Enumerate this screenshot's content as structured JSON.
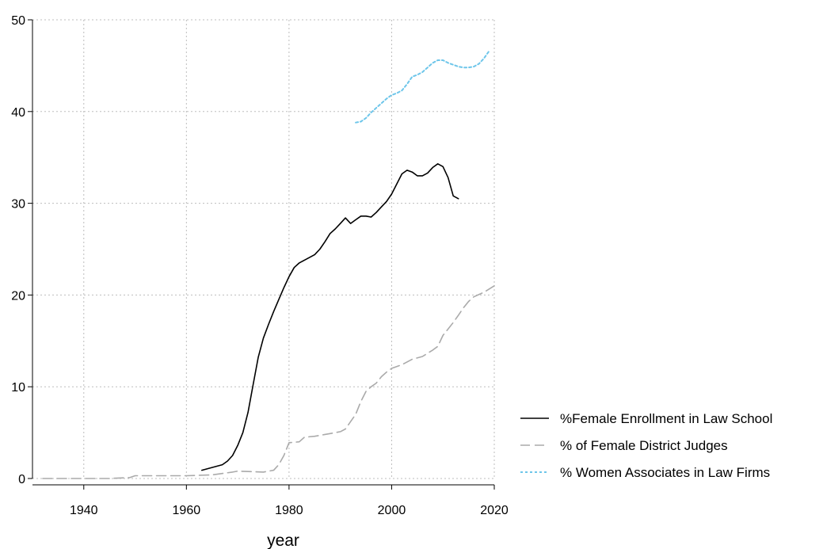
{
  "chart_data": {
    "type": "line",
    "title": "",
    "xlabel": "year",
    "ylabel": "",
    "xlim": [
      1930,
      2020
    ],
    "ylim": [
      0,
      50
    ],
    "xticks": [
      1940,
      1960,
      1980,
      2000,
      2020
    ],
    "yticks": [
      0,
      10,
      20,
      30,
      40,
      50
    ],
    "grid": true,
    "legend_position": "bottom-right outside",
    "series": [
      {
        "name": "%Female Enrollment in Law School",
        "color": "#000000",
        "style": "solid",
        "x": [
          1963,
          1965,
          1967,
          1968,
          1969,
          1970,
          1971,
          1972,
          1973,
          1974,
          1975,
          1976,
          1977,
          1978,
          1979,
          1980,
          1981,
          1982,
          1983,
          1984,
          1985,
          1986,
          1987,
          1988,
          1989,
          1990,
          1991,
          1992,
          1993,
          1994,
          1995,
          1996,
          1997,
          1998,
          1999,
          2000,
          2001,
          2002,
          2003,
          2004,
          2005,
          2006,
          2007,
          2008,
          2009,
          2010,
          2011,
          2012,
          2013
        ],
        "y": [
          0.9,
          1.2,
          1.5,
          1.9,
          2.5,
          3.6,
          5.0,
          7.2,
          10.2,
          13.2,
          15.3,
          16.8,
          18.2,
          19.5,
          20.8,
          22.0,
          23.0,
          23.5,
          23.8,
          24.1,
          24.4,
          25.0,
          25.8,
          26.7,
          27.2,
          27.8,
          28.4,
          27.8,
          28.2,
          28.6,
          28.6,
          28.5,
          29.0,
          29.6,
          30.2,
          31.0,
          32.1,
          33.2,
          33.6,
          33.4,
          33.0,
          33.0,
          33.3,
          33.9,
          34.3,
          34.0,
          32.8,
          30.8,
          30.5
        ]
      },
      {
        "name": "% of Female District Judges",
        "color": "#aaaaaa",
        "style": "dashed",
        "x": [
          1932,
          1940,
          1945,
          1949,
          1950,
          1955,
          1960,
          1965,
          1969,
          1970,
          1975,
          1977,
          1978,
          1979,
          1980,
          1982,
          1983,
          1985,
          1987,
          1988,
          1990,
          1991,
          1992,
          1993,
          1994,
          1995,
          1996,
          1997,
          1998,
          1999,
          2000,
          2002,
          2004,
          2006,
          2008,
          2009,
          2010,
          2012,
          2013,
          2014,
          2015,
          2016,
          2018,
          2020
        ],
        "y": [
          0.0,
          0.0,
          0.0,
          0.1,
          0.3,
          0.3,
          0.3,
          0.4,
          0.7,
          0.8,
          0.7,
          0.9,
          1.5,
          2.5,
          3.9,
          4.0,
          4.5,
          4.6,
          4.8,
          4.9,
          5.1,
          5.4,
          6.2,
          7.0,
          8.4,
          9.5,
          10.0,
          10.4,
          11.1,
          11.6,
          12.0,
          12.4,
          13.0,
          13.3,
          14.0,
          14.4,
          15.6,
          17.0,
          17.8,
          18.6,
          19.3,
          19.8,
          20.3,
          21.0
        ]
      },
      {
        "name": "% Women Associates in Law Firms",
        "color": "#6ec6ea",
        "style": "dotted",
        "x": [
          1993,
          1994,
          1995,
          1996,
          1997,
          1998,
          1999,
          2000,
          2001,
          2002,
          2003,
          2004,
          2005,
          2006,
          2007,
          2008,
          2009,
          2010,
          2011,
          2012,
          2013,
          2014,
          2015,
          2016,
          2017,
          2018,
          2019
        ],
        "y": [
          38.8,
          38.9,
          39.3,
          39.9,
          40.4,
          40.9,
          41.4,
          41.8,
          42.0,
          42.3,
          43.0,
          43.8,
          44.0,
          44.3,
          44.8,
          45.3,
          45.6,
          45.6,
          45.3,
          45.1,
          44.9,
          44.8,
          44.8,
          44.9,
          45.2,
          45.8,
          46.6
        ]
      }
    ]
  }
}
